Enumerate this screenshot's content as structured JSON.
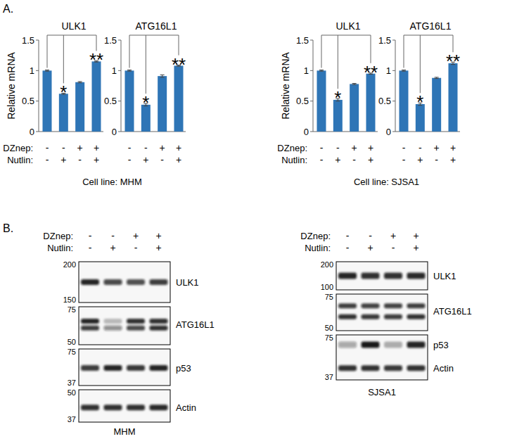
{
  "panel_a": {
    "label": "A.",
    "groups": [
      {
        "caption": "Cell line: MHM",
        "ylabel": "Relative mRNA",
        "condition_labels": [
          "DZnep:",
          "Nutlin:"
        ]
      },
      {
        "caption": "Cell line: SJSA1",
        "ylabel": "Relative mRNA",
        "condition_labels": [
          "DZnep:",
          "Nutlin:"
        ]
      }
    ]
  },
  "chart_data": [
    {
      "type": "bar",
      "title": "ULK1",
      "categories": [
        null,
        null,
        null,
        null
      ],
      "conditions": [
        [
          "-",
          "-",
          "+",
          "+"
        ],
        [
          "-",
          "+",
          "-",
          "+"
        ]
      ],
      "values": [
        1.0,
        0.62,
        0.81,
        1.15
      ],
      "errors": [
        0.01,
        0.01,
        0.01,
        0.01
      ],
      "star_labels": [
        null,
        "*",
        null,
        "**"
      ],
      "color": "#2e75b6",
      "ylim": [
        0,
        1.5
      ],
      "yticks": [
        0,
        0.5,
        1,
        1.5
      ],
      "grid": false
    },
    {
      "type": "bar",
      "title": "ATG16L1",
      "categories": [
        null,
        null,
        null,
        null
      ],
      "conditions": [
        [
          "-",
          "-",
          "+",
          "+"
        ],
        [
          "-",
          "+",
          "-",
          "+"
        ]
      ],
      "values": [
        1.0,
        0.44,
        0.91,
        1.08
      ],
      "errors": [
        0.01,
        0.02,
        0.02,
        0.01
      ],
      "star_labels": [
        null,
        "*",
        null,
        "**"
      ],
      "color": "#2e75b6",
      "ylim": [
        0,
        1.5
      ],
      "yticks": [
        0,
        0.5,
        1,
        1.5
      ],
      "grid": false
    },
    {
      "type": "bar",
      "title": "ULK1",
      "categories": [
        null,
        null,
        null,
        null
      ],
      "conditions": [
        [
          "-",
          "-",
          "+",
          "+"
        ],
        [
          "-",
          "+",
          "-",
          "+"
        ]
      ],
      "values": [
        1.0,
        0.52,
        0.78,
        0.95
      ],
      "errors": [
        0.01,
        0.02,
        0.01,
        0.01
      ],
      "star_labels": [
        null,
        "*",
        null,
        "**"
      ],
      "color": "#2e75b6",
      "ylim": [
        0,
        1.5
      ],
      "yticks": [
        0,
        0.5,
        1,
        1.5
      ],
      "grid": false
    },
    {
      "type": "bar",
      "title": "ATG16L1",
      "categories": [
        null,
        null,
        null,
        null
      ],
      "conditions": [
        [
          "-",
          "-",
          "+",
          "+"
        ],
        [
          "-",
          "+",
          "-",
          "+"
        ]
      ],
      "values": [
        1.0,
        0.45,
        0.88,
        1.12
      ],
      "errors": [
        0.01,
        0.02,
        0.01,
        0.02
      ],
      "star_labels": [
        null,
        "*",
        null,
        "**"
      ],
      "color": "#2e75b6",
      "ylim": [
        0,
        1.5
      ],
      "yticks": [
        0,
        0.5,
        1,
        1.5
      ],
      "grid": false
    }
  ],
  "panel_b": {
    "label": "B.",
    "blots": [
      {
        "caption": "MHM",
        "condition_labels": [
          "DZnep:",
          "Nutlin:"
        ],
        "conditions": [
          [
            "-",
            "-",
            "+",
            "+"
          ],
          [
            "-",
            "+",
            "-",
            "+"
          ]
        ],
        "boxes": [
          {
            "markers": [
              200,
              150
            ],
            "bands": [
              "ULK1"
            ]
          },
          {
            "markers": [
              75,
              50
            ],
            "bands": [
              "ATG16L1"
            ]
          },
          {
            "markers": [
              75,
              37
            ],
            "bands": [
              "p53"
            ]
          },
          {
            "markers": [
              50,
              37
            ],
            "bands": [
              "Actin"
            ]
          }
        ]
      },
      {
        "caption": "SJSA1",
        "condition_labels": [
          "DZnep:",
          "Nutlin:"
        ],
        "conditions": [
          [
            "-",
            "-",
            "+",
            "+"
          ],
          [
            "-",
            "+",
            "-",
            "+"
          ]
        ],
        "boxes": [
          {
            "markers": [
              200,
              100
            ],
            "bands": [
              "ULK1"
            ]
          },
          {
            "markers": [
              75,
              50
            ],
            "bands": [
              "ATG16L1"
            ]
          },
          {
            "markers": [
              75,
              37
            ],
            "bands": [
              "p53",
              "Actin"
            ]
          }
        ]
      }
    ]
  }
}
